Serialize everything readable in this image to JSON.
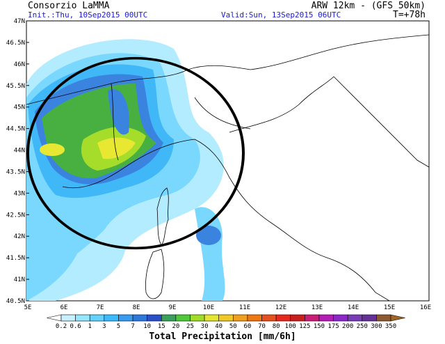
{
  "header": {
    "title": "Consorzio LaMMA",
    "model": "ARW 12km - (GFS 50km)",
    "init": "Init.:Thu, 10Sep2015 00UTC",
    "valid": "Valid:Sun, 13Sep2015 06UTC",
    "lead": "T=+78h"
  },
  "map": {
    "lat_labels": [
      "47N",
      "46.5N",
      "46N",
      "45.5N",
      "45N",
      "44.5N",
      "44N",
      "43.5N",
      "43N",
      "42.5N",
      "42N",
      "41.5N",
      "41N",
      "40.5N"
    ],
    "lon_labels": [
      "5E",
      "6E",
      "7E",
      "8E",
      "9E",
      "10E",
      "11E",
      "12E",
      "13E",
      "14E",
      "15E",
      "16E"
    ]
  },
  "colorbar": {
    "labels": [
      "0.2",
      "0.6",
      "1",
      "3",
      "5",
      "7",
      "10",
      "15",
      "20",
      "25",
      "30",
      "40",
      "50",
      "60",
      "70",
      "80",
      "100",
      "125",
      "150",
      "175",
      "200",
      "250",
      "300",
      "350"
    ],
    "title": "Total Precipitation [mm/6h]"
  }
}
